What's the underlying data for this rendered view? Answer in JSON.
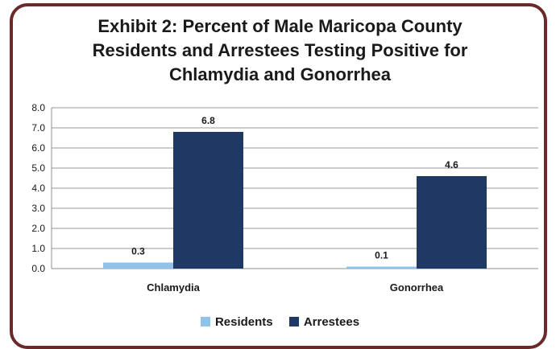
{
  "chart_data": {
    "type": "bar",
    "title_lines": [
      "Exhibit 2: Percent of Male Maricopa County",
      "Residents and Arrestees Testing Positive for",
      "Chlamydia and Gonorrhea"
    ],
    "categories": [
      "Chlamydia",
      "Gonorrhea"
    ],
    "series": [
      {
        "name": "Residents",
        "values": [
          0.3,
          0.1
        ],
        "labels": [
          "0.3",
          "0.1"
        ],
        "color": "#8fc3ea"
      },
      {
        "name": "Arrestees",
        "values": [
          6.8,
          4.6
        ],
        "labels": [
          "6.8",
          "4.6"
        ],
        "color": "#1f3864"
      }
    ],
    "yticks": [
      "0.0",
      "1.0",
      "2.0",
      "3.0",
      "4.0",
      "5.0",
      "6.0",
      "7.0",
      "8.0"
    ],
    "ylim": [
      0,
      8
    ],
    "grid": true,
    "legend_position": "bottom",
    "frame_color": "#6b2a2a"
  }
}
